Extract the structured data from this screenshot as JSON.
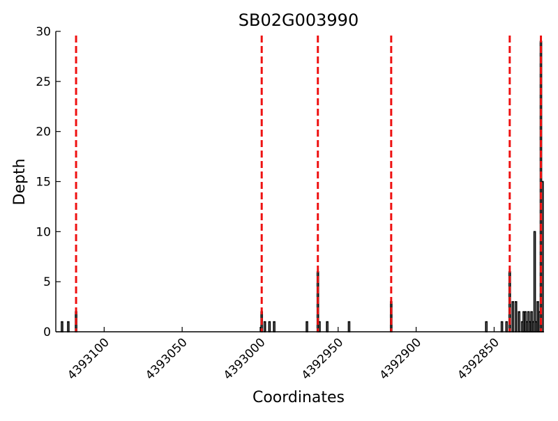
{
  "chart_data": {
    "type": "bar",
    "title": "SB02G003990",
    "xlabel": "Coordinates",
    "ylabel": "Depth",
    "x_axis_reversed": true,
    "xlim": [
      4393131,
      4392818
    ],
    "ylim": [
      0,
      30
    ],
    "xticks": [
      4393100,
      4393050,
      4393000,
      4392950,
      4392900,
      4392850
    ],
    "xtick_labels": [
      "4393100",
      "4393050",
      "4393000",
      "4392950",
      "4392900",
      "4392850"
    ],
    "yticks": [
      0,
      5,
      10,
      15,
      20,
      25,
      30
    ],
    "ytick_labels": [
      "0",
      "5",
      "10",
      "15",
      "20",
      "25",
      "30"
    ],
    "grid": false,
    "legend": "none",
    "bar_color": "#ffffff",
    "bar_edge_color": "#000000",
    "marker_color": "#ee1111",
    "bars": [
      {
        "x": 4393127,
        "y": 1
      },
      {
        "x": 4393123,
        "y": 1
      },
      {
        "x": 4393118,
        "y": 2
      },
      {
        "x": 4392999,
        "y": 2
      },
      {
        "x": 4392997,
        "y": 1
      },
      {
        "x": 4392994,
        "y": 1
      },
      {
        "x": 4392991,
        "y": 1
      },
      {
        "x": 4392970,
        "y": 1
      },
      {
        "x": 4392963,
        "y": 6
      },
      {
        "x": 4392962,
        "y": 1
      },
      {
        "x": 4392957,
        "y": 1
      },
      {
        "x": 4392943,
        "y": 1
      },
      {
        "x": 4392916,
        "y": 3
      },
      {
        "x": 4392855,
        "y": 1
      },
      {
        "x": 4392845,
        "y": 1
      },
      {
        "x": 4392842,
        "y": 1
      },
      {
        "x": 4392840,
        "y": 6
      },
      {
        "x": 4392838,
        "y": 3
      },
      {
        "x": 4392836,
        "y": 3
      },
      {
        "x": 4392834,
        "y": 2
      },
      {
        "x": 4392832,
        "y": 1
      },
      {
        "x": 4392831,
        "y": 2
      },
      {
        "x": 4392830,
        "y": 2
      },
      {
        "x": 4392829,
        "y": 1
      },
      {
        "x": 4392828,
        "y": 2
      },
      {
        "x": 4392827,
        "y": 1
      },
      {
        "x": 4392826,
        "y": 2
      },
      {
        "x": 4392825,
        "y": 1
      },
      {
        "x": 4392824,
        "y": 10
      },
      {
        "x": 4392823,
        "y": 1
      },
      {
        "x": 4392822,
        "y": 3
      },
      {
        "x": 4392821,
        "y": 2
      },
      {
        "x": 4392820,
        "y": 29
      },
      {
        "x": 4392819,
        "y": 15
      }
    ],
    "vertical_markers": [
      4393118,
      4392999,
      4392963,
      4392916,
      4392840,
      4392820
    ]
  }
}
